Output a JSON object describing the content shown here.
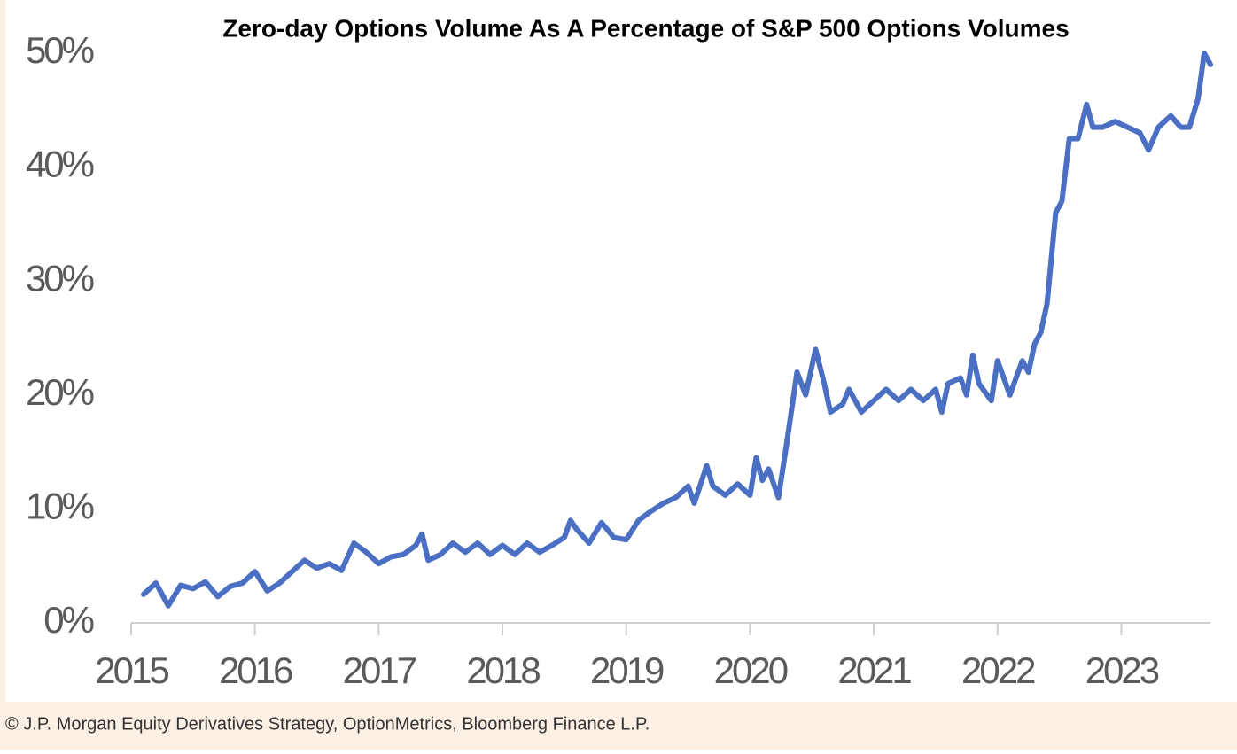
{
  "chart_data": {
    "type": "line",
    "title": "Zero-day Options Volume As A Percentage of S&P 500 Options Volumes",
    "source": "© J.P. Morgan Equity Derivatives Strategy, OptionMetrics, Bloomberg Finance L.P.",
    "color": "#4a6fc3",
    "x": [
      2015.1,
      2015.2,
      2015.3,
      2015.4,
      2015.5,
      2015.6,
      2015.7,
      2015.8,
      2015.9,
      2016.0,
      2016.1,
      2016.2,
      2016.3,
      2016.4,
      2016.5,
      2016.6,
      2016.7,
      2016.8,
      2016.9,
      2017.0,
      2017.1,
      2017.2,
      2017.3,
      2017.35,
      2017.4,
      2017.5,
      2017.6,
      2017.7,
      2017.8,
      2017.9,
      2018.0,
      2018.1,
      2018.2,
      2018.3,
      2018.4,
      2018.5,
      2018.55,
      2018.6,
      2018.7,
      2018.8,
      2018.9,
      2019.0,
      2019.1,
      2019.2,
      2019.3,
      2019.4,
      2019.5,
      2019.55,
      2019.65,
      2019.7,
      2019.8,
      2019.9,
      2020.0,
      2020.05,
      2020.1,
      2020.15,
      2020.23,
      2020.3,
      2020.38,
      2020.45,
      2020.53,
      2020.6,
      2020.65,
      2020.75,
      2020.8,
      2020.9,
      2021.0,
      2021.1,
      2021.2,
      2021.3,
      2021.4,
      2021.5,
      2021.55,
      2021.6,
      2021.7,
      2021.75,
      2021.8,
      2021.85,
      2021.95,
      2022.0,
      2022.1,
      2022.2,
      2022.25,
      2022.3,
      2022.35,
      2022.4,
      2022.47,
      2022.52,
      2022.58,
      2022.65,
      2022.72,
      2022.77,
      2022.85,
      2022.95,
      2023.05,
      2023.15,
      2023.22,
      2023.3,
      2023.4,
      2023.48,
      2023.55,
      2023.62,
      2023.67,
      2023.72
    ],
    "values": [
      2.5,
      3.5,
      1.5,
      3.3,
      3.0,
      3.6,
      2.3,
      3.2,
      3.5,
      4.5,
      2.8,
      3.5,
      4.5,
      5.5,
      4.8,
      5.2,
      4.6,
      7.0,
      6.2,
      5.2,
      5.8,
      6.0,
      6.8,
      7.8,
      5.5,
      6.0,
      7.0,
      6.2,
      7.0,
      6.0,
      6.8,
      6.0,
      7.0,
      6.2,
      6.8,
      7.5,
      9.0,
      8.2,
      7.0,
      8.8,
      7.5,
      7.3,
      9.0,
      9.8,
      10.5,
      11.0,
      12.0,
      10.5,
      13.8,
      12.0,
      11.2,
      12.2,
      11.2,
      14.5,
      12.5,
      13.5,
      11.0,
      16.0,
      22.0,
      20.0,
      24.0,
      21.0,
      18.5,
      19.2,
      20.5,
      18.5,
      19.5,
      20.5,
      19.5,
      20.5,
      19.5,
      20.5,
      18.5,
      21.0,
      21.5,
      20.0,
      23.5,
      21.0,
      19.5,
      23.0,
      20.0,
      23.0,
      22.0,
      24.5,
      25.5,
      28.0,
      36.0,
      37.0,
      42.5,
      42.5,
      45.5,
      43.5,
      43.5,
      44.0,
      43.5,
      43.0,
      41.5,
      43.5,
      44.5,
      43.5,
      43.5,
      46.0,
      50.0,
      49.0
    ],
    "xlim": [
      2015,
      2023.72
    ],
    "xticks": [
      2015,
      2016,
      2017,
      2018,
      2019,
      2020,
      2021,
      2022,
      2023
    ],
    "ylim": [
      0,
      50
    ],
    "yticks": [
      {
        "value": 0,
        "label": "0%"
      },
      {
        "value": 10,
        "label": "10%"
      },
      {
        "value": 20,
        "label": "20%"
      },
      {
        "value": 30,
        "label": "30%"
      },
      {
        "value": 40,
        "label": "40%"
      },
      {
        "value": 50,
        "label": "50%"
      }
    ]
  }
}
